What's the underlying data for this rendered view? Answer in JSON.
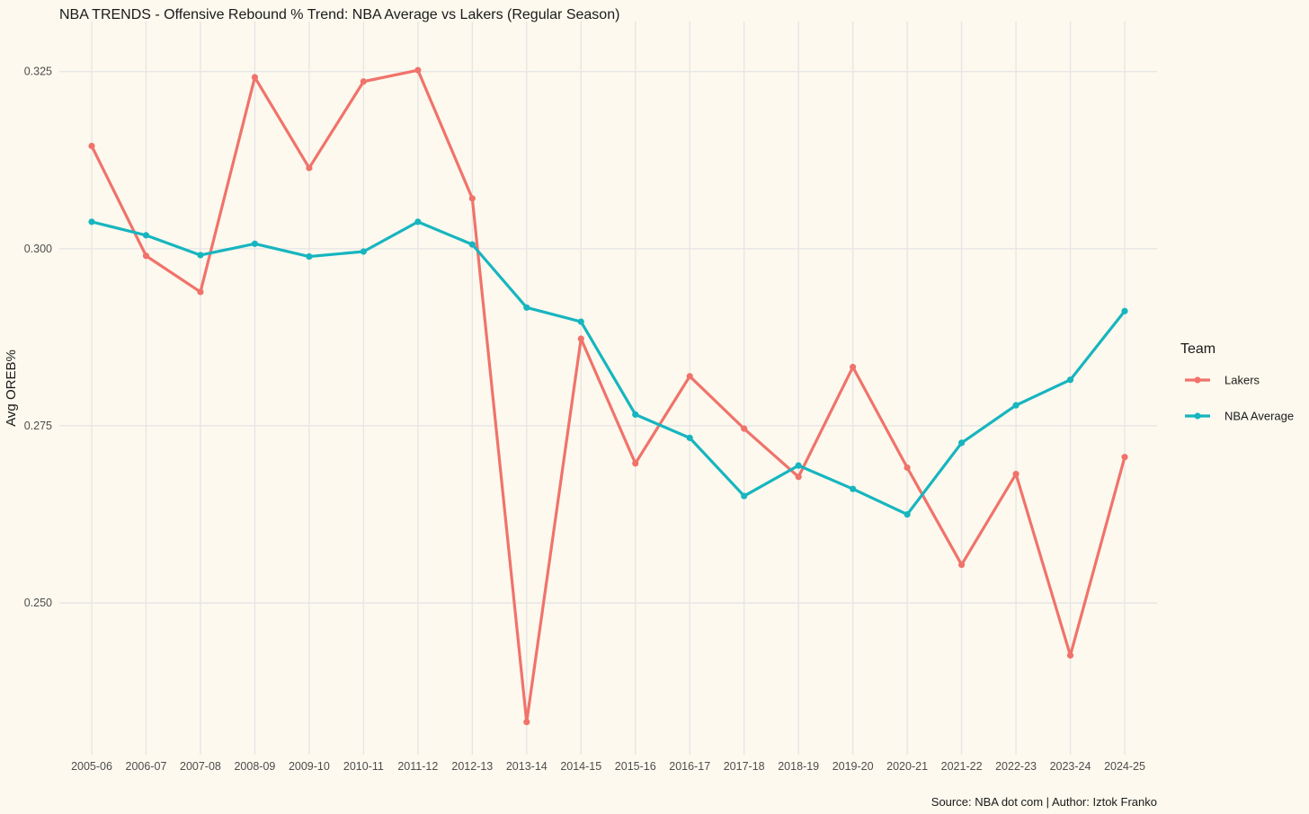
{
  "chart_data": {
    "type": "line",
    "title": "NBA TRENDS - Offensive Rebound % Trend: NBA Average vs Lakers (Regular Season)",
    "xlabel": "",
    "ylabel": "Avg OREB%",
    "caption": "Source: NBA dot com | Author: Iztok Franko",
    "categories": [
      "2005-06",
      "2006-07",
      "2007-08",
      "2008-09",
      "2009-10",
      "2010-11",
      "2011-12",
      "2012-13",
      "2013-14",
      "2014-15",
      "2015-16",
      "2016-17",
      "2017-18",
      "2018-19",
      "2019-20",
      "2020-21",
      "2021-22",
      "2022-23",
      "2023-24",
      "2024-25"
    ],
    "ylim": [
      0.2315,
      0.3275
    ],
    "yticks": [
      0.25,
      0.275,
      0.3,
      0.325
    ],
    "ytick_labels": [
      "0.250",
      "0.275",
      "0.300",
      "0.325"
    ],
    "grid": true,
    "legend": {
      "title": "Team",
      "position": "right"
    },
    "series": [
      {
        "name": "Lakers",
        "color": "#f0736b",
        "values": [
          0.3145,
          0.299,
          0.2939,
          0.3242,
          0.3114,
          0.3236,
          0.3252,
          0.3071,
          0.2332,
          0.2873,
          0.2697,
          0.282,
          0.2746,
          0.2678,
          0.2833,
          0.2691,
          0.2554,
          0.2682,
          0.2426,
          0.2706
        ]
      },
      {
        "name": "NBA Average",
        "color": "#17b5bf",
        "values": [
          0.3038,
          0.3019,
          0.2991,
          0.3007,
          0.2989,
          0.2996,
          0.3038,
          0.3006,
          0.2917,
          0.2897,
          0.2766,
          0.2733,
          0.2651,
          0.2694,
          0.2661,
          0.2625,
          0.2726,
          0.2779,
          0.2815,
          0.2912
        ]
      }
    ]
  }
}
